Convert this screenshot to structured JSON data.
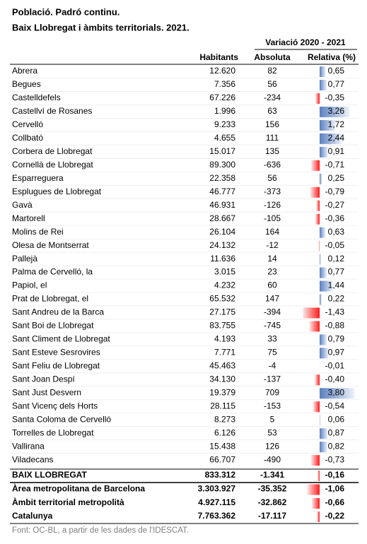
{
  "title": [
    "Població. Padró continu.",
    "Baix Llobregat i àmbits territorials. 2021."
  ],
  "table": {
    "group_header": "Variació 2020 - 2021",
    "columns": [
      "Habitants",
      "Absoluta",
      "Relativa (%)"
    ],
    "rows": [
      [
        "Abrera",
        "12.620",
        "82",
        "0,65"
      ],
      [
        "Begues",
        "7.356",
        "56",
        "0,77"
      ],
      [
        "Castelldefels",
        "67.226",
        "-234",
        "-0,35"
      ],
      [
        "Castellví de Rosanes",
        "1.996",
        "63",
        "3,26"
      ],
      [
        "Cervelló",
        "9.233",
        "156",
        "1,72"
      ],
      [
        "Collbató",
        "4.655",
        "111",
        "2,44"
      ],
      [
        "Corbera de Llobregat",
        "15.017",
        "135",
        "0,91"
      ],
      [
        "Cornellà de Llobregat",
        "89.300",
        "-636",
        "-0,71"
      ],
      [
        "Esparreguera",
        "22.358",
        "56",
        "0,25"
      ],
      [
        "Esplugues de Llobregat",
        "46.777",
        "-373",
        "-0,79"
      ],
      [
        "Gavà",
        "46.931",
        "-126",
        "-0,27"
      ],
      [
        "Martorell",
        "28.667",
        "-105",
        "-0,36"
      ],
      [
        "Molins de Rei",
        "26.104",
        "164",
        "0,63"
      ],
      [
        "Olesa de Montserrat",
        "24.132",
        "-12",
        "-0,05"
      ],
      [
        "Pallejà",
        "11.636",
        "14",
        "0,12"
      ],
      [
        "Palma de Cervelló, la",
        "3.015",
        "23",
        "0,77"
      ],
      [
        "Papiol, el",
        "4.232",
        "60",
        "1,44"
      ],
      [
        "Prat de Llobregat, el",
        "65.532",
        "147",
        "0,22"
      ],
      [
        "Sant Andreu de la Barca",
        "27.175",
        "-394",
        "-1,43"
      ],
      [
        "Sant Boi de Llobregat",
        "83.755",
        "-745",
        "-0,88"
      ],
      [
        "Sant Climent de Llobregat",
        "4.193",
        "33",
        "0,79"
      ],
      [
        "Sant Esteve Sesrovires",
        "7.771",
        "75",
        "0,97"
      ],
      [
        "Sant Feliu de Llobregat",
        "45.463",
        "-4",
        "-0,01"
      ],
      [
        "Sant Joan Despí",
        "34.130",
        "-137",
        "-0,40"
      ],
      [
        "Sant Just Desvern",
        "19.379",
        "709",
        "3,80"
      ],
      [
        "Sant Vicenç dels Horts",
        "28.115",
        "-153",
        "-0,54"
      ],
      [
        "Santa Coloma de Cervelló",
        "8.273",
        "5",
        "0,06"
      ],
      [
        "Torrelles de Llobregat",
        "6.126",
        "53",
        "0,87"
      ],
      [
        "Vallirana",
        "15.438",
        "126",
        "0,82"
      ],
      [
        "Viladecans",
        "66.707",
        "-490",
        "-0,73"
      ]
    ],
    "totals": [
      [
        "BAIX LLOBREGAT",
        "833.312",
        "-1.341",
        "-0,16"
      ],
      [
        "Àrea metropolitana de Barcelona",
        "3.303.927",
        "-35.352",
        "-1,06"
      ],
      [
        "Àmbit territorial metropolità",
        "4.927.115",
        "-32.862",
        "-0,66"
      ],
      [
        "Catalunya",
        "7.763.362",
        "-17.117",
        "-0,22"
      ]
    ]
  },
  "footnote": "Font: OC-BL, a partir de les dades de l'IDESCAT."
}
